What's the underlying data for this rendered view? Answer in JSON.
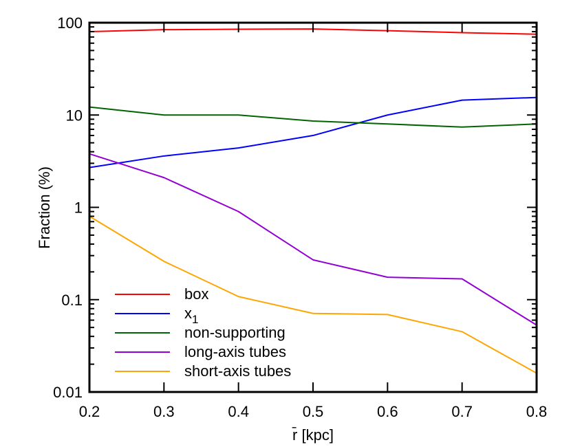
{
  "chart_data": {
    "type": "line",
    "title": "",
    "xlabel": "r̄ [kpc]",
    "ylabel": "Fraction (%)",
    "x": [
      0.2,
      0.3,
      0.4,
      0.5,
      0.6,
      0.7,
      0.8
    ],
    "xlim": [
      0.2,
      0.8
    ],
    "ylim": [
      0.01,
      100
    ],
    "yscale": "log",
    "grid": false,
    "legend_position": "bottom-left",
    "x_ticks": [
      "0.2",
      "0.3",
      "0.4",
      "0.5",
      "0.6",
      "0.7",
      "0.8"
    ],
    "y_ticks": [
      "0.01",
      "0.1",
      "1",
      "10",
      "100"
    ],
    "series": [
      {
        "name": "box",
        "color": "#ff0000",
        "values": [
          80,
          84,
          85,
          85.5,
          82,
          78,
          75
        ]
      },
      {
        "name": "x",
        "subscript": "1",
        "color": "#0000ff",
        "values": [
          2.7,
          3.6,
          4.4,
          6.0,
          10.0,
          14.5,
          15.5
        ]
      },
      {
        "name": "non-supporting",
        "color": "#006400",
        "values": [
          12.2,
          10.0,
          10.0,
          8.6,
          8.0,
          7.4,
          8.0
        ]
      },
      {
        "name": "long-axis tubes",
        "color": "#9400d3",
        "values": [
          3.8,
          2.1,
          0.9,
          0.27,
          0.175,
          0.168,
          0.053
        ]
      },
      {
        "name": "short-axis tubes",
        "color": "#ffa500",
        "values": [
          0.8,
          0.26,
          0.108,
          0.071,
          0.069,
          0.045,
          0.016
        ]
      }
    ]
  }
}
